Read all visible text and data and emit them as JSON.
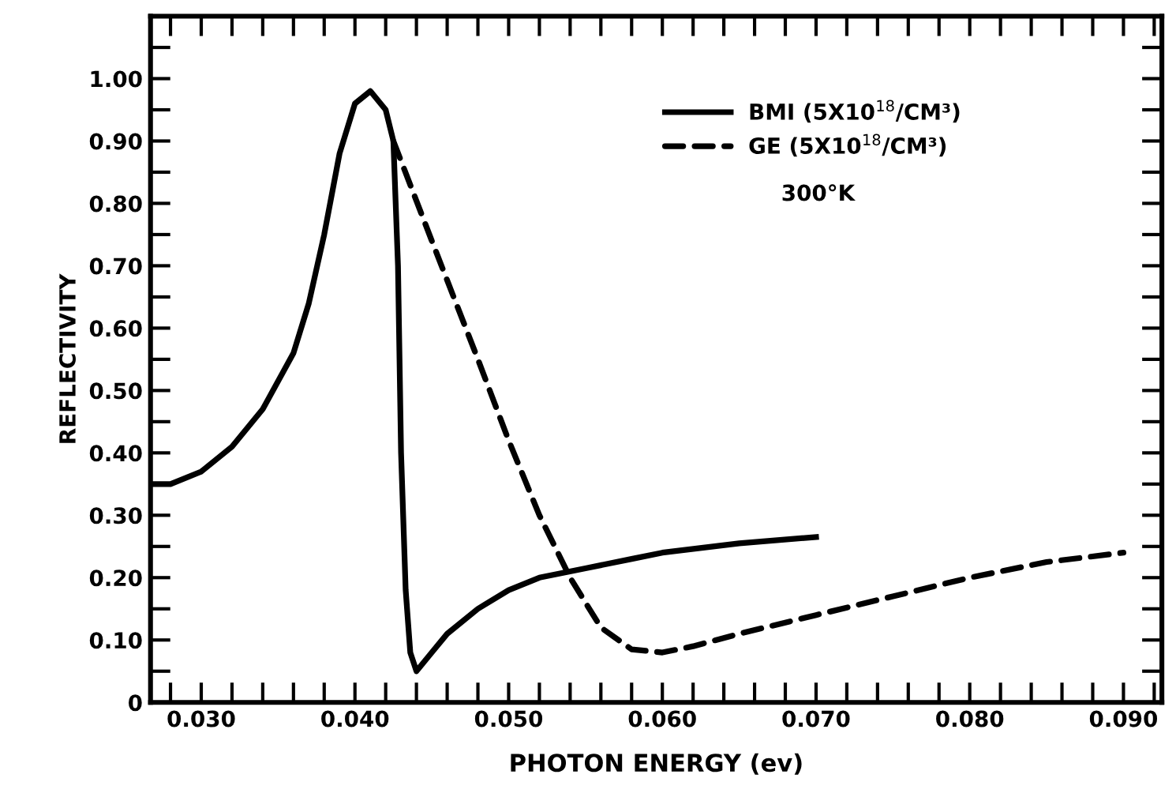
{
  "chart_data": {
    "type": "line",
    "xlabel": "PHOTON ENERGY (ev)",
    "ylabel": "REFLECTIVITY",
    "annotations": [
      "300°K"
    ],
    "legend": "top right",
    "grid": false,
    "marker": "none",
    "xlim": [
      0.0267,
      0.0925
    ],
    "ylim": [
      0,
      1.1
    ],
    "xticks": [
      {
        "value": 0.028,
        "label": null
      },
      {
        "value": 0.03,
        "label": "0.030"
      },
      {
        "value": 0.032,
        "label": null
      },
      {
        "value": 0.034,
        "label": null
      },
      {
        "value": 0.036,
        "label": null
      },
      {
        "value": 0.038,
        "label": null
      },
      {
        "value": 0.04,
        "label": "0.040"
      },
      {
        "value": 0.042,
        "label": null
      },
      {
        "value": 0.044,
        "label": null
      },
      {
        "value": 0.046,
        "label": null
      },
      {
        "value": 0.048,
        "label": null
      },
      {
        "value": 0.05,
        "label": "0.050"
      },
      {
        "value": 0.052,
        "label": null
      },
      {
        "value": 0.054,
        "label": null
      },
      {
        "value": 0.056,
        "label": null
      },
      {
        "value": 0.058,
        "label": null
      },
      {
        "value": 0.06,
        "label": "0.060"
      },
      {
        "value": 0.062,
        "label": null
      },
      {
        "value": 0.064,
        "label": null
      },
      {
        "value": 0.066,
        "label": null
      },
      {
        "value": 0.068,
        "label": null
      },
      {
        "value": 0.07,
        "label": "0.070"
      },
      {
        "value": 0.072,
        "label": null
      },
      {
        "value": 0.074,
        "label": null
      },
      {
        "value": 0.076,
        "label": null
      },
      {
        "value": 0.078,
        "label": null
      },
      {
        "value": 0.08,
        "label": "0.080"
      },
      {
        "value": 0.082,
        "label": null
      },
      {
        "value": 0.084,
        "label": null
      },
      {
        "value": 0.086,
        "label": null
      },
      {
        "value": 0.088,
        "label": null
      },
      {
        "value": 0.09,
        "label": "0.090"
      },
      {
        "value": 0.092,
        "label": null
      }
    ],
    "yticks": [
      0,
      {
        "value": 0.05,
        "label": null
      },
      {
        "value": 0.1,
        "label": "0.10"
      },
      {
        "value": 0.15,
        "label": null
      },
      {
        "value": 0.2,
        "label": "0.20"
      },
      {
        "value": 0.25,
        "label": null
      },
      {
        "value": 0.3,
        "label": "0.30"
      },
      {
        "value": 0.35,
        "label": null
      },
      {
        "value": 0.4,
        "label": "0.40"
      },
      {
        "value": 0.45,
        "label": null
      },
      {
        "value": 0.5,
        "label": "0.50"
      },
      {
        "value": 0.55,
        "label": null
      },
      {
        "value": 0.6,
        "label": "0.60"
      },
      {
        "value": 0.65,
        "label": null
      },
      {
        "value": 0.7,
        "label": "0.70"
      },
      {
        "value": 0.75,
        "label": null
      },
      {
        "value": 0.8,
        "label": "0.80"
      },
      {
        "value": 0.85,
        "label": null
      },
      {
        "value": 0.9,
        "label": "0.90"
      },
      {
        "value": 0.95,
        "label": null
      },
      {
        "value": 1.0,
        "label": "1.00"
      },
      {
        "value": 1.05,
        "label": null
      }
    ],
    "series": [
      {
        "name": "BMI (5X10$^{18}$/CM³)",
        "color": "#000000",
        "line_style": "solid",
        "x": [
          0.0267,
          0.028,
          0.03,
          0.032,
          0.034,
          0.036,
          0.037,
          0.038,
          0.039,
          0.04,
          0.041,
          0.042,
          0.0425,
          0.0428,
          0.043,
          0.0433,
          0.0436,
          0.044,
          0.045,
          0.046,
          0.048,
          0.05,
          0.052,
          0.055,
          0.058,
          0.06,
          0.065,
          0.07
        ],
        "values": [
          0.35,
          0.35,
          0.37,
          0.41,
          0.47,
          0.56,
          0.64,
          0.75,
          0.88,
          0.96,
          0.98,
          0.95,
          0.9,
          0.7,
          0.4,
          0.18,
          0.08,
          0.05,
          0.08,
          0.11,
          0.15,
          0.18,
          0.2,
          0.215,
          0.23,
          0.24,
          0.255,
          0.265
        ]
      },
      {
        "name": "GE (5X10$^{18}$/CM³)",
        "color": "#000000",
        "line_style": "dashed",
        "x": [
          0.0425,
          0.045,
          0.048,
          0.05,
          0.052,
          0.054,
          0.056,
          0.058,
          0.06,
          0.062,
          0.065,
          0.07,
          0.075,
          0.08,
          0.085,
          0.09
        ],
        "values": [
          0.9,
          0.74,
          0.55,
          0.42,
          0.3,
          0.2,
          0.12,
          0.085,
          0.08,
          0.09,
          0.11,
          0.14,
          0.17,
          0.2,
          0.225,
          0.24
        ]
      }
    ]
  }
}
